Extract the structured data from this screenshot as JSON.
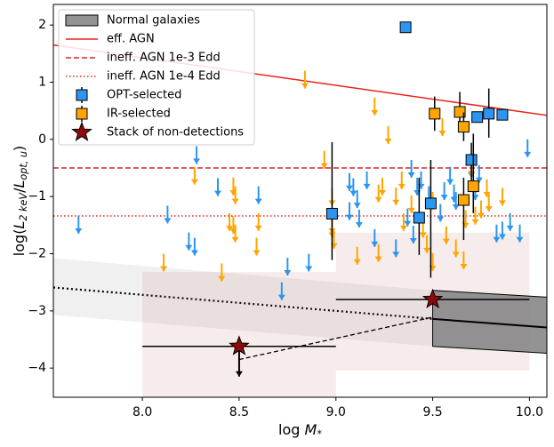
{
  "chart_data": {
    "type": "scatter",
    "xlabel": "log M_*",
    "ylabel": "log(L_{2 keV}/L_{opt, u})",
    "xlim": [
      7.54,
      10.09
    ],
    "ylim": [
      -4.51,
      2.36
    ],
    "xticks": [
      {
        "value": 8.0,
        "label": "8.0"
      },
      {
        "value": 8.5,
        "label": "8.5"
      },
      {
        "value": 9.0,
        "label": "9.0"
      },
      {
        "value": 9.5,
        "label": "9.5"
      },
      {
        "value": 10.0,
        "label": "10.0"
      }
    ],
    "yticks": [
      {
        "value": -4,
        "label": "−4"
      },
      {
        "value": -3,
        "label": "−3"
      },
      {
        "value": -2,
        "label": "−2"
      },
      {
        "value": -1,
        "label": "−1"
      },
      0,
      1,
      2
    ],
    "legend": "upper left",
    "series": [
      {
        "name": "Normal galaxies",
        "kind": "band",
        "color": "#808080",
        "x": [
          9.5,
          10.09
        ],
        "y_upper": [
          -2.64,
          -2.76
        ],
        "y_lower": [
          -3.62,
          -3.74
        ],
        "center": [
          -3.14,
          -3.29
        ],
        "extrapolation": {
          "x": [
            7.54,
            9.5
          ],
          "y_upper": [
            -2.08,
            -2.64
          ],
          "y_lower": [
            -3.07,
            -3.62
          ],
          "center": [
            -2.59,
            -3.14
          ]
        }
      },
      {
        "name": "eff. AGN",
        "kind": "line",
        "color": "#e8241c",
        "linestyle": "solid",
        "x": [
          7.54,
          10.09
        ],
        "y": [
          1.65,
          0.42
        ]
      },
      {
        "name": "ineff. AGN 1e-3 Edd",
        "kind": "line",
        "color": "#d62728",
        "linestyle": "dashed",
        "x": [
          7.54,
          10.09
        ],
        "y": [
          -0.5,
          -0.5
        ]
      },
      {
        "name": "ineff. AGN 1e-4 Edd",
        "kind": "line",
        "color": "#e8241c",
        "linestyle": "dotted",
        "x": [
          7.54,
          10.09
        ],
        "y": [
          -1.34,
          -1.34
        ]
      },
      {
        "name": "OPT-selected",
        "kind": "points",
        "marker": "square",
        "color": "#2b95f0",
        "x": [
          9.36,
          8.98,
          9.43,
          9.49,
          9.7,
          9.73,
          9.79,
          9.86
        ],
        "y": [
          1.96,
          -1.3,
          -1.37,
          -1.12,
          -0.36,
          0.39,
          0.45,
          0.43
        ],
        "yerr_minus": [
          0,
          0.81,
          0.65,
          1.3,
          0.5,
          0,
          0.42,
          0
        ],
        "yerr_plus": [
          0,
          1.25,
          0.7,
          0.76,
          0.3,
          0,
          0.44,
          0
        ],
        "upper_limits": {
          "x": [
            7.67,
            8.13,
            8.24,
            8.27,
            8.28,
            8.39,
            8.6,
            8.72,
            8.75,
            8.86,
            9.07,
            9.09,
            9.07,
            9.11,
            9.12,
            9.16,
            9.2,
            9.31,
            9.37,
            9.39,
            9.4,
            9.42,
            9.44,
            9.48,
            9.54,
            9.56,
            9.59,
            9.61,
            9.62,
            9.7,
            9.72,
            9.74,
            9.83,
            9.86,
            9.9,
            9.95,
            9.99
          ],
          "y": [
            -1.34,
            -1.16,
            -1.63,
            -1.72,
            -0.12,
            -0.68,
            -0.82,
            -2.5,
            -2.07,
            -2.0,
            -0.59,
            -0.68,
            -1.1,
            -0.89,
            -1.23,
            -0.56,
            -1.57,
            -1.75,
            -1.21,
            -0.36,
            -1.51,
            -0.67,
            -0.56,
            -0.82,
            -1.13,
            -0.75,
            -0.48,
            -0.79,
            -0.92,
            -0.36,
            -0.75,
            -0.45,
            -1.49,
            -1.44,
            -1.29,
            -1.49,
            0.0
          ]
        }
      },
      {
        "name": "IR-selected",
        "kind": "points",
        "marker": "square",
        "color": "#ffa500",
        "x": [
          9.51,
          9.64,
          9.66,
          9.66,
          9.71
        ],
        "y": [
          0.45,
          0.48,
          0.22,
          -1.06,
          -0.82
        ],
        "yerr_minus": [
          0.3,
          0.35,
          0.25,
          0.7,
          0.47
        ],
        "yerr_plus": [
          0.3,
          0.35,
          0.25,
          0.39,
          0.92
        ],
        "upper_limits": {
          "x": [
            8.11,
            8.27,
            8.41,
            8.45,
            8.47,
            8.47,
            8.48,
            8.48,
            8.59,
            8.6,
            8.84,
            8.94,
            8.98,
            8.98,
            8.98,
            8.99,
            9.11,
            9.2,
            9.22,
            9.22,
            9.24,
            9.27,
            9.31,
            9.34,
            9.35,
            9.39,
            9.45,
            9.47,
            9.5,
            9.5,
            9.55,
            9.57,
            9.62,
            9.66,
            9.67,
            9.7,
            9.72,
            9.75,
            9.78,
            9.79,
            9.86
          ],
          "y": [
            -2.0,
            -0.48,
            -2.17,
            -1.29,
            -0.67,
            -1.34,
            -1.49,
            -0.82,
            -1.72,
            -1.29,
            1.2,
            -0.2,
            -0.85,
            -1.34,
            -1.41,
            -1.6,
            -1.88,
            0.73,
            -1.83,
            -0.79,
            -0.67,
            0.23,
            -0.84,
            -0.56,
            -1.29,
            -0.98,
            -1.41,
            -1.68,
            -1.99,
            -0.92,
            0.37,
            -1.52,
            -1.75,
            -1.96,
            -1.24,
            -0.33,
            -1.18,
            -1.07,
            -0.7,
            -0.95,
            -0.85
          ]
        }
      },
      {
        "name": "Stack of non-detections",
        "kind": "points",
        "marker": "star",
        "color": "#8b0a0a",
        "x": [
          8.5,
          9.5
        ],
        "y": [
          -3.62,
          -2.8
        ],
        "xerr": [
          0.5,
          0.5
        ],
        "upper_limit": [
          true,
          false
        ],
        "boxes": [
          {
            "x": [
              8.0,
              9.0
            ],
            "y": [
              -4.5,
              -2.32
            ]
          },
          {
            "x": [
              9.0,
              10.0
            ],
            "y": [
              -4.04,
              -1.63
            ]
          }
        ],
        "connector": {
          "x": [
            8.5,
            9.5
          ],
          "y": [
            -3.85,
            -3.11
          ]
        }
      }
    ]
  }
}
